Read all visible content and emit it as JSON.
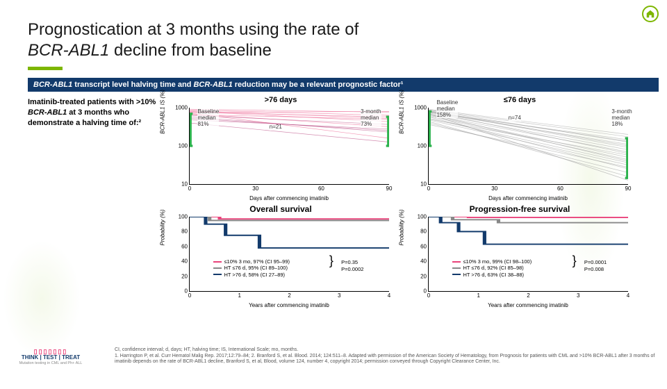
{
  "title": {
    "line1": "Prognostication at 3 months using the rate of",
    "italic": "BCR-ABL1",
    "line2": " decline from baseline"
  },
  "banner": {
    "i1": "BCR-ABL1",
    "t1": " transcript level halving time and ",
    "i2": "BCR-ABL1",
    "t2": " reduction may be a relevant prognostic factor¹"
  },
  "left": {
    "t1": "Imatinib-treated patients with >10% ",
    "i1": "BCR-ABL1",
    "t2": " at 3 months who demonstrate a halving time of:²"
  },
  "charts": {
    "top": [
      {
        "title": ">76 days",
        "ylabel": "BCR-ABL1 IS (%)",
        "yticks": [
          "1000",
          "100",
          "10"
        ],
        "xticks": [
          "0",
          "30",
          "60",
          "90"
        ],
        "xlabel": "Days after commencing imatinib",
        "ann": {
          "baseline": "Baseline\nmedian\n81%",
          "n": "n=21",
          "m3": "3-month\nmedian\n73%"
        },
        "colors": {
          "lines": "#e9427a",
          "box": "#2bb24c"
        }
      },
      {
        "title": "≤76 days",
        "ylabel": "BCR-ABL1 IS (%)",
        "yticks": [
          "1000",
          "100",
          "10"
        ],
        "xticks": [
          "0",
          "30",
          "60",
          "90"
        ],
        "xlabel": "Days after commencing imatinib",
        "ann": {
          "baseline": "Baseline\nmedian\n158%",
          "n": "n=74",
          "m3": "3-month\nmedian\n18%"
        },
        "colors": {
          "lines": "#999999",
          "box": "#2bb24c"
        }
      }
    ],
    "bot": [
      {
        "title": "Overall survival",
        "ylabel": "Probability (%)",
        "yticks": [
          "100",
          "80",
          "60",
          "40",
          "20",
          "0"
        ],
        "xticks": [
          "0",
          "1",
          "2",
          "3",
          "4"
        ],
        "xlabel": "Years after commencing imatinib",
        "legend": [
          "≤10% 3 mo, 97% (CI 95–99)",
          "HT ≤76 d, 95% (CI 89–100)",
          "HT >76 d, 58% (CI 27–89)"
        ],
        "pvals": [
          "P=0.35",
          "P=0.0002"
        ],
        "series_colors": [
          "#e9427a",
          "#888888",
          "#123a6b"
        ]
      },
      {
        "title": "Progression-free survival",
        "ylabel": "Probability (%)",
        "yticks": [
          "100",
          "80",
          "60",
          "40",
          "20",
          "0"
        ],
        "xticks": [
          "0",
          "1",
          "2",
          "3",
          "4"
        ],
        "xlabel": "Years after commencing imatinib",
        "legend": [
          "≤10% 3 mo, 99% (CI 98–100)",
          "HT ≤76 d, 92% (CI 85–98)",
          "HT >76 d, 63% (CI 38–88)"
        ],
        "pvals": [
          "P=0.0001",
          "P=0.008"
        ],
        "series_colors": [
          "#e9427a",
          "#888888",
          "#123a6b"
        ]
      }
    ]
  },
  "logo": {
    "text": "THINK | TEST | TREAT",
    "sub": "Mutation testing in CML and Ph+ ALL"
  },
  "footnote": "CI, confidence interval; d, days; HT, halving time; IS, International Scale; mo, months.\n1. Harrington P, et al. Curr Hematol Malig Rep. 2017;12:79–84; 2. Branford S, et al. Blood. 2014; 124:511–8. Adapted with permission of the American Society of Hematology, from Prognosis for patients with CML and >10% BCR-ABL1 after 3 months of imatinib depends on the rate of BCR-ABL1 decline, Branford S, et al, Blood, volume 124, number 4, copyright 2014; permission conveyed through Copyright Clearance Center, Inc."
}
